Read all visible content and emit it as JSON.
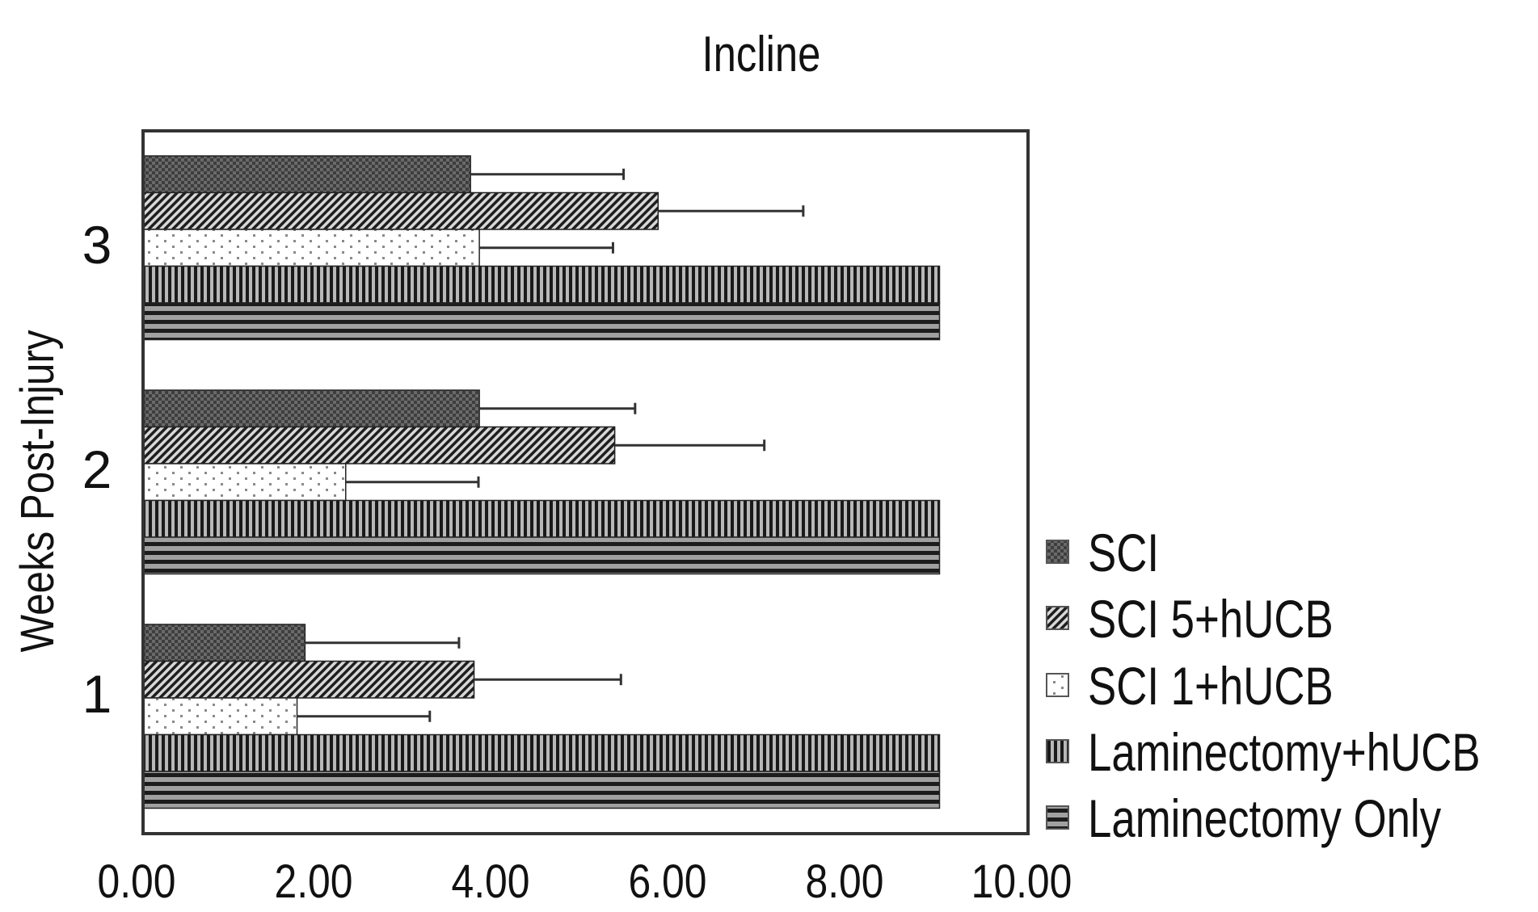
{
  "chart_data": {
    "type": "bar",
    "orientation": "horizontal",
    "title": "Incline",
    "xlabel": "",
    "ylabel": "Weeks Post-Injury",
    "xlim": [
      0,
      10
    ],
    "xticks": [
      "0.00",
      "2.00",
      "4.00",
      "6.00",
      "8.00",
      "10.00"
    ],
    "categories": [
      "1",
      "2",
      "3"
    ],
    "legend_position": "right-bottom",
    "grid": false,
    "series": [
      {
        "name": "SCI",
        "pattern": "checker",
        "values": [
          1.83,
          3.8,
          3.7
        ],
        "error_upper": [
          3.57,
          5.56,
          5.43
        ]
      },
      {
        "name": "SCI 5+hUCB",
        "pattern": "diagonal",
        "values": [
          3.74,
          5.33,
          5.82
        ],
        "error_upper": [
          5.4,
          7.02,
          7.46
        ]
      },
      {
        "name": "SCI 1+hUCB",
        "pattern": "dots",
        "values": [
          1.74,
          2.29,
          3.8
        ],
        "error_upper": [
          3.24,
          3.79,
          5.31
        ]
      },
      {
        "name": "Laminectomy+hUCB",
        "pattern": "vertical",
        "values": [
          9.0,
          9.0,
          9.0
        ],
        "error_upper": [
          null,
          null,
          null
        ]
      },
      {
        "name": "Laminectomy Only",
        "pattern": "horizontal",
        "values": [
          9.0,
          9.0,
          9.0
        ],
        "error_upper": [
          null,
          null,
          null
        ]
      }
    ]
  }
}
